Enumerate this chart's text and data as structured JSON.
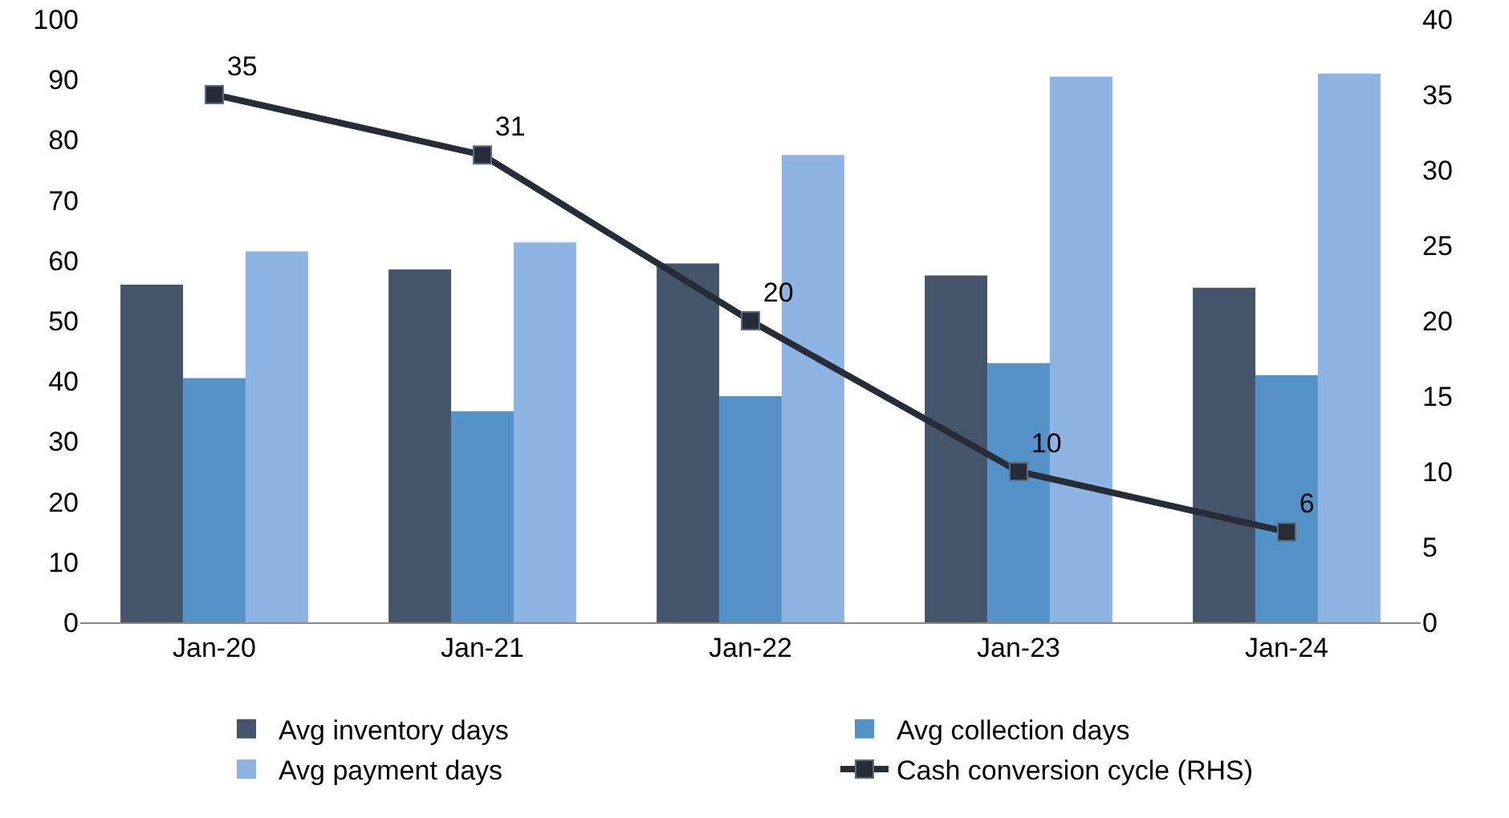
{
  "chart_data": {
    "type": "bar",
    "categories": [
      "Jan-20",
      "Jan-21",
      "Jan-22",
      "Jan-23",
      "Jan-24"
    ],
    "series": [
      {
        "name": "Avg inventory days",
        "color": "#44546a",
        "values": [
          56,
          58.5,
          59.5,
          57.5,
          55.5
        ]
      },
      {
        "name": "Avg collection days",
        "color": "#5592c8",
        "values": [
          40.5,
          35,
          37.5,
          43,
          41
        ]
      },
      {
        "name": "Avg payment days",
        "color": "#8db4e2",
        "values": [
          61.5,
          63,
          77.5,
          90.5,
          91
        ]
      },
      {
        "name": "Cash conversion cycle (RHS)",
        "type": "line",
        "axis": "y2",
        "color": "#262d38",
        "marker": "square",
        "values": [
          35,
          31,
          20,
          10,
          6
        ],
        "value_labels": [
          "35",
          "31",
          "20",
          "10",
          "6"
        ]
      }
    ],
    "ylim": [
      0,
      100
    ],
    "yticks": [
      0,
      10,
      20,
      30,
      40,
      50,
      60,
      70,
      80,
      90,
      100
    ],
    "y2lim": [
      0,
      40
    ],
    "y2ticks": [
      0,
      5,
      10,
      15,
      20,
      25,
      30,
      35,
      40
    ],
    "grid": false,
    "legend": "bottom"
  }
}
